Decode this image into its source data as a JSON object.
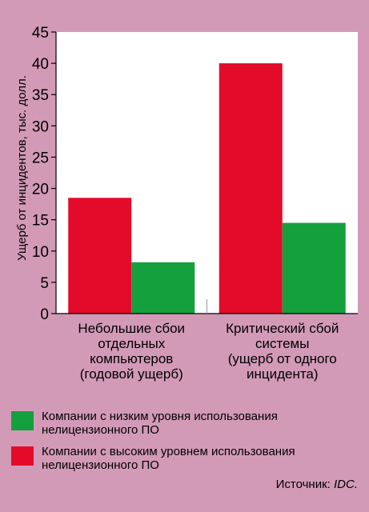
{
  "chart_data": {
    "type": "bar",
    "categories": [
      [
        "Небольшие сбои",
        "отдельных",
        "компьютеров",
        "(годовой ущерб)"
      ],
      [
        "Критический сбой",
        "системы",
        "(ущерб от одного",
        "инцидента)"
      ]
    ],
    "series": [
      {
        "name": "Компании с высоким уровнем использования нелицензионного ПО",
        "color": "#e30a2a",
        "values": [
          18.5,
          40
        ]
      },
      {
        "name": "Компании с низким уровня использования нелицензионного ПО",
        "color": "#14a03c",
        "values": [
          8.2,
          14.5
        ]
      }
    ],
    "ylabel": "Ущерб от инцидентов, тыс. долл.",
    "ylim": [
      0,
      45
    ],
    "yticks": [
      0,
      5,
      10,
      15,
      20,
      25,
      30,
      35,
      40,
      45
    ],
    "grid": false
  },
  "legend": {
    "items": [
      {
        "lines": [
          "Компании с низким уровня использования",
          "нелицензионного ПО"
        ],
        "color": "#14a03c"
      },
      {
        "lines": [
          "Компании с высоким уровнем использования",
          "нелицензионного ПО"
        ],
        "color": "#e30a2a"
      }
    ]
  },
  "source": {
    "label": "Источник: ",
    "value": "IDC."
  }
}
